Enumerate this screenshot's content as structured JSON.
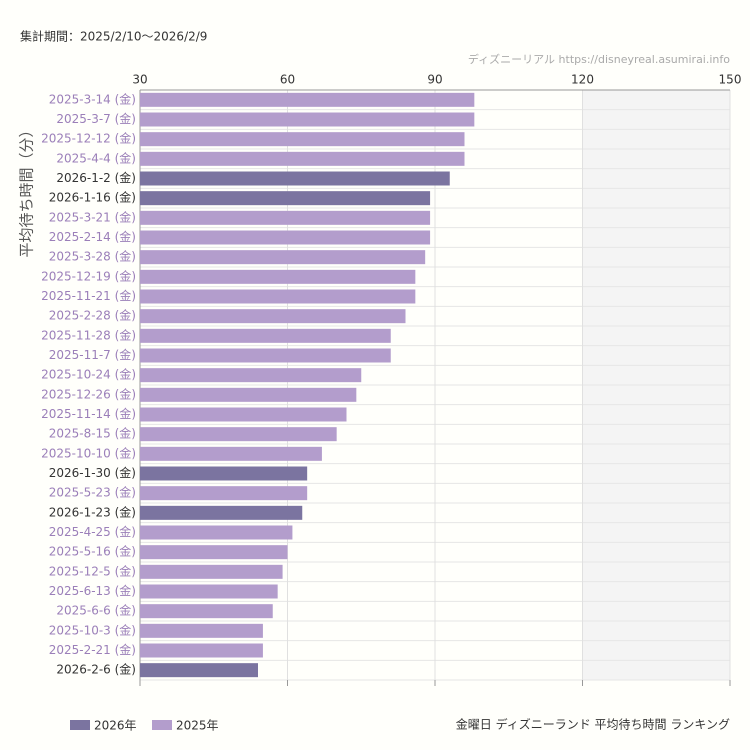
{
  "chart_data": {
    "type": "bar",
    "orientation": "horizontal",
    "period_note": "集計期間：2025/2/10〜2026/2/9",
    "source": "ディズニーリアル https://disneyreal.asumirai.info",
    "title": "金曜日 ディズニーランド 平均待ち時間 ランキング",
    "y_label": "平均待ち時間（分）",
    "categories": [
      "2025-3-14 (金)",
      "2025-3-7 (金)",
      "2025-12-12 (金)",
      "2025-4-4 (金)",
      "2026-1-2 (金)",
      "2026-1-16 (金)",
      "2025-3-21 (金)",
      "2025-2-14 (金)",
      "2025-3-28 (金)",
      "2025-12-19 (金)",
      "2025-11-21 (金)",
      "2025-2-28 (金)",
      "2025-11-28 (金)",
      "2025-11-7 (金)",
      "2025-10-24 (金)",
      "2025-12-26 (金)",
      "2025-11-14 (金)",
      "2025-8-15 (金)",
      "2025-10-10 (金)",
      "2026-1-30 (金)",
      "2025-5-23 (金)",
      "2026-1-23 (金)",
      "2025-4-25 (金)",
      "2025-5-16 (金)",
      "2025-12-5 (金)",
      "2025-6-13 (金)",
      "2025-6-6 (金)",
      "2025-10-3 (金)",
      "2025-2-21 (金)",
      "2026-2-6 (金)"
    ],
    "series": [
      {
        "name": "2026年",
        "color": "#7b74a0",
        "label_color": "#333333",
        "values": [
          null,
          null,
          null,
          null,
          93,
          89,
          null,
          null,
          null,
          null,
          null,
          null,
          null,
          null,
          null,
          null,
          null,
          null,
          null,
          64,
          null,
          63,
          null,
          null,
          null,
          null,
          null,
          null,
          null,
          54
        ]
      },
      {
        "name": "2025年",
        "color": "#b39dcc",
        "label_color": "#9b7fb9",
        "values": [
          98,
          98,
          96,
          96,
          null,
          null,
          89,
          89,
          88,
          86,
          86,
          84,
          81,
          81,
          75,
          74,
          72,
          70,
          67,
          null,
          64,
          null,
          61,
          60,
          59,
          58,
          57,
          55,
          55,
          null
        ]
      }
    ],
    "xlim": [
      30,
      150
    ],
    "xticks": [
      30,
      60,
      90,
      120,
      150
    ],
    "shaded_range": [
      120,
      150
    ],
    "grid": true,
    "legend": "bottom-left"
  }
}
